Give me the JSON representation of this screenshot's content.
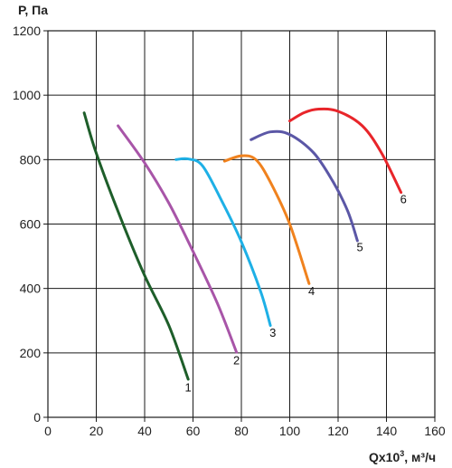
{
  "chart_data": {
    "type": "line",
    "ylabel": "Р, Па",
    "xlabel_main": "Qx10",
    "xlabel_sup": "3",
    "xlabel_unit": ", м³/ч",
    "xlim": [
      0,
      160
    ],
    "ylim": [
      0,
      1200
    ],
    "xticks": [
      0,
      20,
      40,
      60,
      80,
      100,
      120,
      140,
      160
    ],
    "yticks": [
      0,
      200,
      400,
      600,
      800,
      1000,
      1200
    ],
    "grid": true,
    "series": [
      {
        "name": "1",
        "color": "#1e5e2a",
        "points": [
          [
            15,
            945
          ],
          [
            20,
            820
          ],
          [
            30,
            620
          ],
          [
            40,
            440
          ],
          [
            50,
            285
          ],
          [
            58,
            118
          ]
        ],
        "label_at": [
          58,
          80
        ]
      },
      {
        "name": "2",
        "color": "#a855a8",
        "points": [
          [
            29,
            905
          ],
          [
            40,
            790
          ],
          [
            50,
            665
          ],
          [
            60,
            515
          ],
          [
            70,
            355
          ],
          [
            78,
            202
          ]
        ],
        "label_at": [
          78,
          165
        ]
      },
      {
        "name": "3",
        "color": "#1eb0e6",
        "points": [
          [
            53,
            800
          ],
          [
            58,
            802
          ],
          [
            64,
            780
          ],
          [
            72,
            670
          ],
          [
            80,
            545
          ],
          [
            88,
            390
          ],
          [
            92,
            285
          ]
        ],
        "label_at": [
          93,
          250
        ]
      },
      {
        "name": "4",
        "color": "#f0821e",
        "points": [
          [
            73,
            795
          ],
          [
            80,
            812
          ],
          [
            86,
            800
          ],
          [
            92,
            730
          ],
          [
            100,
            600
          ],
          [
            108,
            415
          ]
        ],
        "label_at": [
          109,
          380
        ]
      },
      {
        "name": "5",
        "color": "#5b57a6",
        "points": [
          [
            84,
            862
          ],
          [
            92,
            886
          ],
          [
            100,
            878
          ],
          [
            110,
            820
          ],
          [
            118,
            730
          ],
          [
            124,
            640
          ],
          [
            128,
            548
          ]
        ],
        "label_at": [
          129,
          515
        ]
      },
      {
        "name": "6",
        "color": "#e8252a",
        "points": [
          [
            100,
            920
          ],
          [
            106,
            946
          ],
          [
            112,
            957
          ],
          [
            120,
            950
          ],
          [
            130,
            905
          ],
          [
            138,
            820
          ],
          [
            146,
            698
          ]
        ],
        "label_at": [
          147,
          665
        ]
      }
    ]
  }
}
